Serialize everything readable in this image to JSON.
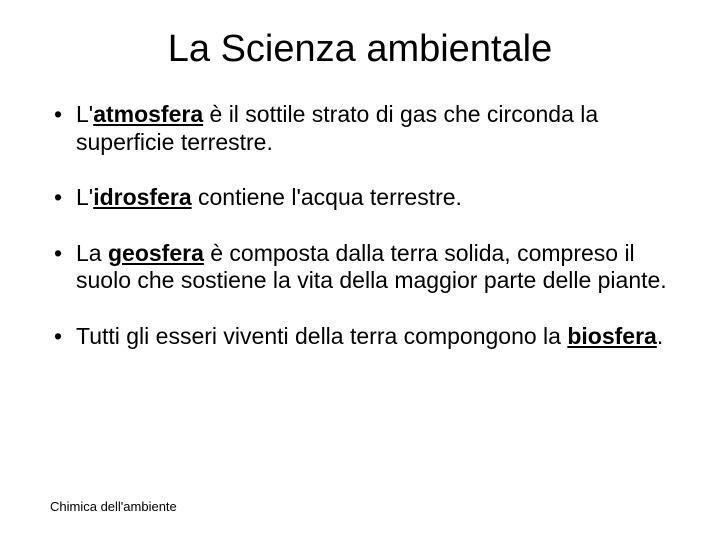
{
  "title": "La Scienza ambientale",
  "bullets": [
    {
      "pre": "L'",
      "strong": "atmosfera",
      "post": " è il sottile strato di gas che circonda la superficie terrestre."
    },
    {
      "pre": "L'",
      "strong": "idrosfera",
      "post": " contiene l'acqua terrestre."
    },
    {
      "pre": "La ",
      "strong": "geosfera",
      "post": " è composta dalla terra solida, compreso il suolo che sostiene la vita della maggior parte delle piante."
    },
    {
      "pre": "Tutti gli esseri viventi della terra compongono la ",
      "strong": "biosfera",
      "post": "."
    }
  ],
  "footer": "Chimica dell'ambiente"
}
